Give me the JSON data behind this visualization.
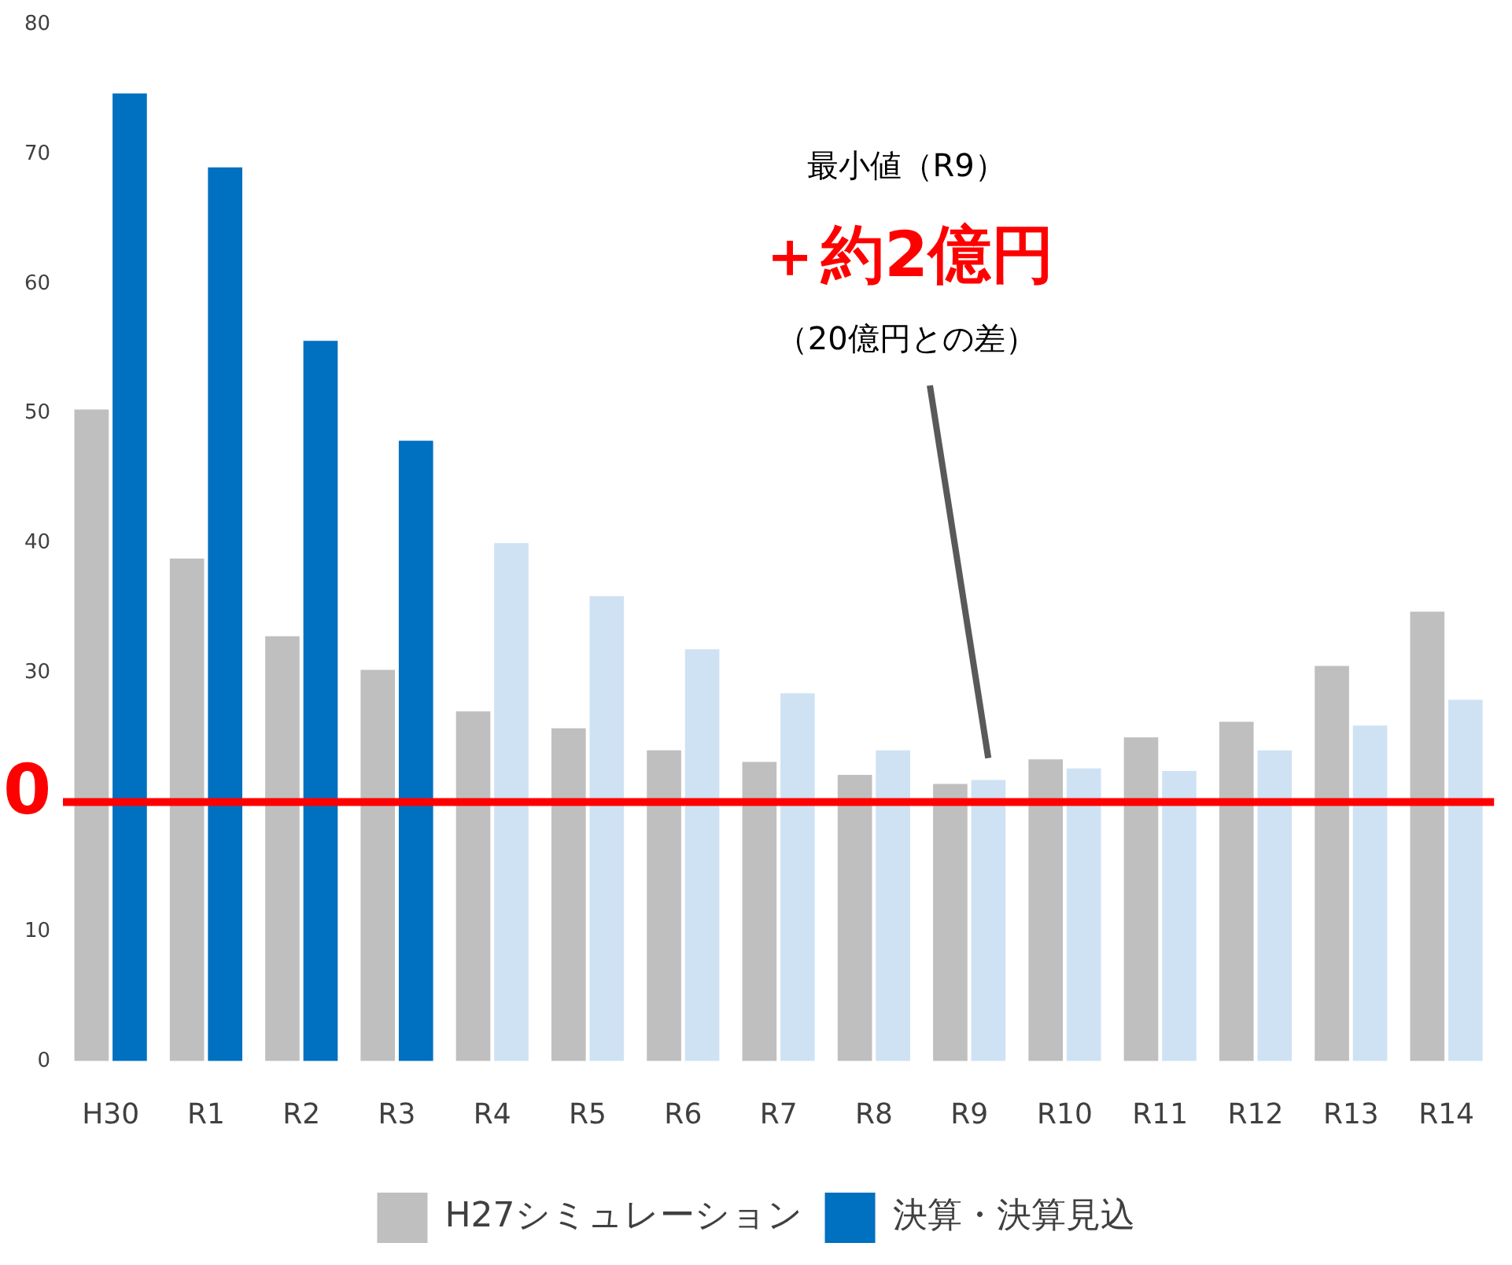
{
  "chart_data": {
    "type": "bar",
    "categories": [
      "H30",
      "R1",
      "R2",
      "R3",
      "R4",
      "R5",
      "R6",
      "R7",
      "R8",
      "R9",
      "R10",
      "R11",
      "R12",
      "R13",
      "R14"
    ],
    "series": [
      {
        "name": "H27シミュレーション",
        "color": "#bfbfbf",
        "values": [
          50.3,
          38.8,
          32.8,
          30.2,
          27.0,
          25.7,
          24.0,
          23.1,
          22.1,
          21.4,
          23.3,
          25.0,
          26.2,
          30.5,
          34.7
        ]
      },
      {
        "name": "決算・決算見込",
        "color": "#0070c0",
        "colors": [
          "#0070c0",
          "#0070c0",
          "#0070c0",
          "#0070c0",
          "#cfe2f3",
          "#cfe2f3",
          "#cfe2f3",
          "#cfe2f3",
          "#cfe2f3",
          "#cfe2f3",
          "#cfe2f3",
          "#cfe2f3",
          "#cfe2f3",
          "#cfe2f3",
          "#cfe2f3"
        ],
        "values": [
          74.7,
          69.0,
          55.6,
          47.9,
          40.0,
          35.9,
          31.8,
          28.4,
          24.0,
          21.7,
          22.6,
          22.4,
          24.0,
          25.9,
          27.9
        ]
      }
    ],
    "ylim": [
      0,
      80
    ],
    "yticks": [
      0,
      10,
      {
        "value": 20,
        "label": null
      },
      30,
      40,
      50,
      60,
      70,
      80
    ],
    "grid": false,
    "legend": "bottom",
    "ref_lines": [
      {
        "axis": "y",
        "value": 20,
        "color": "#ff0000"
      }
    ],
    "annotations": [
      "0",
      "最小値（R9）",
      "＋約2億円",
      "（20億円との差）"
    ]
  }
}
